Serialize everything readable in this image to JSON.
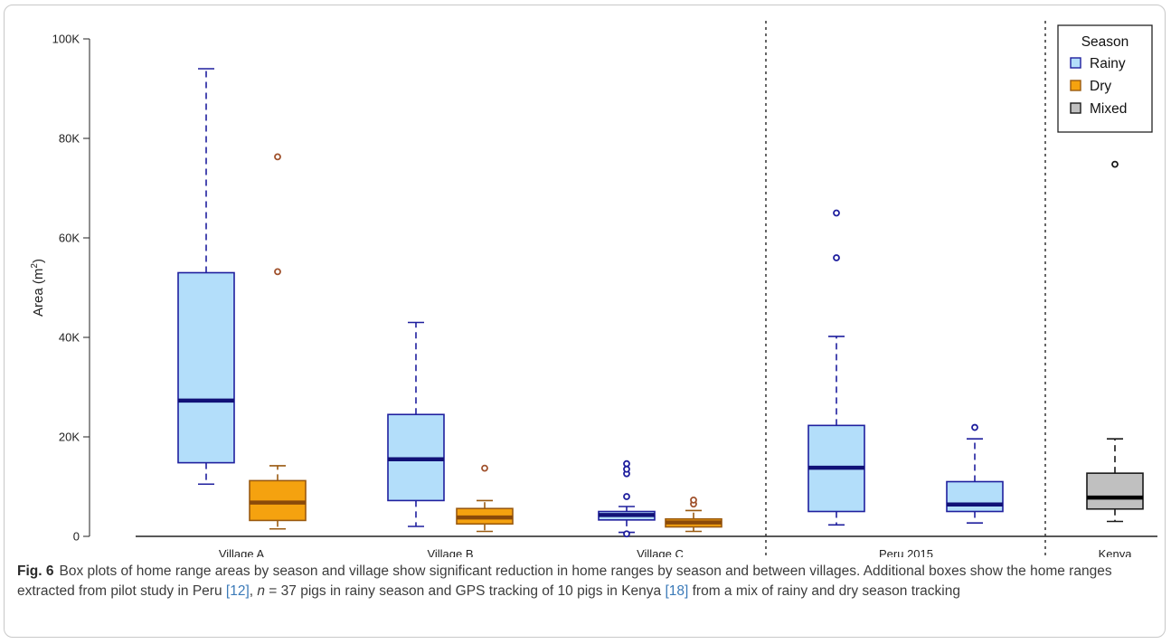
{
  "chart_data": {
    "type": "box",
    "ylabel": "Area (m",
    "ylabel_sup": "2",
    "ylabel_close": ")",
    "ylim": [
      0,
      100000
    ],
    "yticks": [
      {
        "value": 0,
        "label": "0"
      },
      {
        "value": 20000,
        "label": "20K"
      },
      {
        "value": 40000,
        "label": "40K"
      },
      {
        "value": 60000,
        "label": "60K"
      },
      {
        "value": 80000,
        "label": "80K"
      },
      {
        "value": 100000,
        "label": "100K"
      }
    ],
    "groups": [
      {
        "label": "Village A",
        "boxes": [
          "Village A Rainy",
          "Village A Dry"
        ]
      },
      {
        "label": "Village B",
        "boxes": [
          "Village B Rainy",
          "Village B Dry"
        ]
      },
      {
        "label": "Village C",
        "boxes": [
          "Village C Rainy",
          "Village C Dry"
        ]
      },
      {
        "label": "Peru 2015",
        "boxes": [
          "Peru 2015 Rainy A",
          "Peru 2015 Rainy B"
        ]
      },
      {
        "label": "Kenya",
        "boxes": [
          "Kenya Mixed"
        ]
      }
    ],
    "separators_after_group": [
      2,
      3
    ],
    "boxes": [
      {
        "id": "Village A Rainy",
        "season": "Rainy",
        "whisker_low": 10500,
        "q1": 14800,
        "median": 27300,
        "q3": 53000,
        "whisker_high": 94000,
        "outliers": []
      },
      {
        "id": "Village A Dry",
        "season": "Dry",
        "whisker_low": 1500,
        "q1": 3200,
        "median": 6800,
        "q3": 11200,
        "whisker_high": 14200,
        "outliers": [
          53200,
          76300
        ]
      },
      {
        "id": "Village B Rainy",
        "season": "Rainy",
        "whisker_low": 2000,
        "q1": 7200,
        "median": 15500,
        "q3": 24500,
        "whisker_high": 43000,
        "outliers": []
      },
      {
        "id": "Village B Dry",
        "season": "Dry",
        "whisker_low": 1000,
        "q1": 2500,
        "median": 3800,
        "q3": 5600,
        "whisker_high": 7200,
        "outliers": [
          13700
        ]
      },
      {
        "id": "Village C Rainy",
        "season": "Rainy",
        "whisker_low": 800,
        "q1": 3300,
        "median": 4300,
        "q3": 5000,
        "whisker_high": 6000,
        "outliers": [
          500,
          8000,
          12600,
          13500,
          14600
        ]
      },
      {
        "id": "Village C Dry",
        "season": "Dry",
        "whisker_low": 1000,
        "q1": 1900,
        "median": 2800,
        "q3": 3500,
        "whisker_high": 5200,
        "outliers": [
          6500,
          7300
        ]
      },
      {
        "id": "Peru 2015 Rainy A",
        "season": "Rainy",
        "whisker_low": 2300,
        "q1": 5000,
        "median": 13800,
        "q3": 22300,
        "whisker_high": 40200,
        "outliers": [
          56000,
          65000
        ]
      },
      {
        "id": "Peru 2015 Rainy B",
        "season": "Rainy",
        "whisker_low": 2700,
        "q1": 5000,
        "median": 6400,
        "q3": 11000,
        "whisker_high": 19600,
        "outliers": [
          21900
        ]
      },
      {
        "id": "Kenya Mixed",
        "season": "Mixed",
        "whisker_low": 3000,
        "q1": 5500,
        "median": 7800,
        "q3": 12700,
        "whisker_high": 19600,
        "outliers": [
          74800
        ]
      }
    ],
    "legend": {
      "title": "Season",
      "position": "top-right",
      "entries": [
        {
          "label": "Rainy",
          "fill": "#b3defa",
          "stroke": "#1f1f9e"
        },
        {
          "label": "Dry",
          "fill": "#f5a20f",
          "stroke": "#9a5a10"
        },
        {
          "label": "Mixed",
          "fill": "#c0c0c0",
          "stroke": "#1a1a1a"
        }
      ]
    },
    "season_colors": {
      "Rainy": {
        "fill": "#b3defa",
        "stroke": "#1f1f9e",
        "median": "#111177",
        "outlier": "#1f1f9e"
      },
      "Dry": {
        "fill": "#f5a20f",
        "stroke": "#9a5a10",
        "median": "#8a4a0a",
        "outlier": "#a0522d"
      },
      "Mixed": {
        "fill": "#c0c0c0",
        "stroke": "#1a1a1a",
        "median": "#000000",
        "outlier": "#1a1a1a"
      }
    }
  },
  "caption": {
    "fig_label": "Fig. 6",
    "text_1": "Box plots of home range areas by season and village show significant reduction in home ranges by season and between villages. Additional boxes show the home ranges extracted from pilot study in Peru ",
    "ref_1": "[12]",
    "text_2": ", ",
    "n_var": "n",
    "text_3": " = 37 pigs in rainy season and GPS tracking of 10 pigs in Kenya ",
    "ref_2": "[18]",
    "text_4": " from a mix of rainy and dry season tracking"
  }
}
